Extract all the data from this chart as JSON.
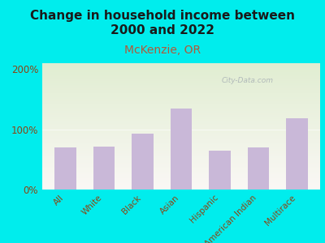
{
  "title": "Change in household income between\n2000 and 2022",
  "subtitle": "McKenzie, OR",
  "categories": [
    "All",
    "White",
    "Black",
    "Asian",
    "Hispanic",
    "American Indian",
    "Multirace"
  ],
  "values": [
    70,
    72,
    93,
    135,
    65,
    70,
    118
  ],
  "bar_color": "#c9b8d8",
  "title_fontsize": 11,
  "subtitle_fontsize": 10,
  "subtitle_color": "#b05a3a",
  "ylabel_ticks": [
    "0%",
    "100%",
    "200%"
  ],
  "yticks": [
    0,
    100,
    200
  ],
  "ylim": [
    0,
    210
  ],
  "background_outer": "#00eded",
  "watermark": "City-Data.com",
  "tick_color": "#8b4513",
  "xtick_fontsize": 7.5,
  "ytick_fontsize": 8.5
}
